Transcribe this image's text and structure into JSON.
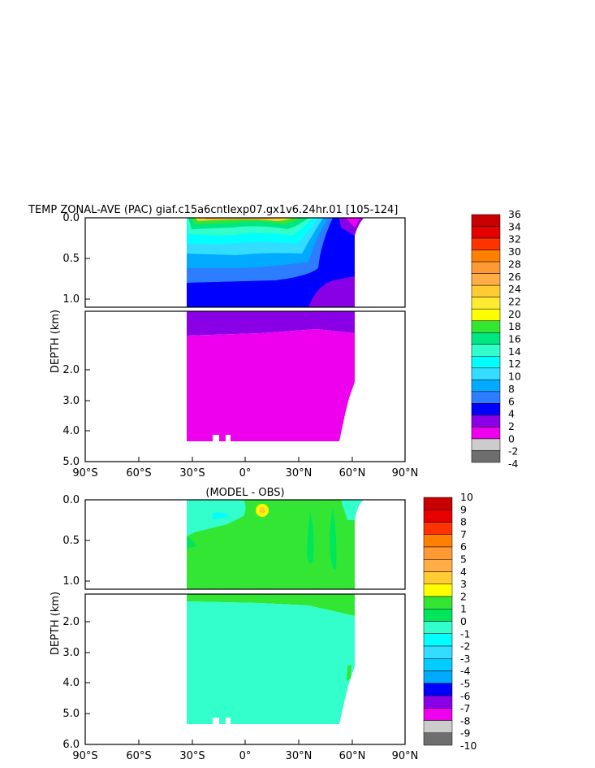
{
  "title": "TEMP ZONAL-AVE (PAC) giaf.c15a6cntlexp07.gx1v6.24hr.01 [105-124]",
  "subtitle": "(MODEL - OBS)",
  "ylabel": "DEPTH (km)",
  "x_ticks": [
    "90°S",
    "60°S",
    "30°S",
    "0°",
    "30°N",
    "60°N",
    "90°N"
  ],
  "y_ticks_upper": [
    "0.0",
    "0.5",
    "1.0"
  ],
  "y_ticks_lower": [
    "2.0",
    "3.0",
    "4.0",
    "5.0",
    "6.0"
  ],
  "chart_data": [
    {
      "type": "heatmap",
      "title": "TEMP ZONAL-AVE (PAC) giaf.c15a6cntlexp07.gx1v6.24hr.01 [105-124]",
      "ylabel": "DEPTH (km)",
      "xlim": [
        -90,
        90
      ],
      "ylim": [
        0,
        6
      ],
      "colorbar_ticks": [
        "36",
        "34",
        "32",
        "30",
        "28",
        "26",
        "24",
        "22",
        "20",
        "18",
        "16",
        "14",
        "12",
        "10",
        "8",
        "6",
        "4",
        "2",
        "0",
        "-2",
        "-4"
      ],
      "colorbar_colors": [
        "#c80000",
        "#e60000",
        "#ff3300",
        "#ff7f00",
        "#ff9933",
        "#ffad44",
        "#ffcc33",
        "#ffea33",
        "#ffff00",
        "#33e633",
        "#00e680",
        "#33ffcc",
        "#00ffff",
        "#33ddff",
        "#00aaff",
        "#2d7dff",
        "#0000ff",
        "#8a00e6",
        "#ee00ee",
        "#cccccc",
        "#6e6e6e"
      ],
      "x_extent": [
        -34,
        62
      ],
      "max_depth_km": 5.3
    },
    {
      "type": "heatmap",
      "title": "(MODEL - OBS)",
      "ylabel": "DEPTH (km)",
      "xlim": [
        -90,
        90
      ],
      "ylim": [
        0,
        6
      ],
      "colorbar_ticks": [
        "10",
        "9",
        "8",
        "7",
        "6",
        "5",
        "4",
        "3",
        "2",
        "1",
        "0",
        "-1",
        "-2",
        "-3",
        "-4",
        "-5",
        "-6",
        "-7",
        "-8",
        "-9",
        "-10"
      ],
      "colorbar_colors": [
        "#c80000",
        "#e60000",
        "#ff3300",
        "#ff7f00",
        "#ff9933",
        "#ffad44",
        "#ffcc33",
        "#ffff00",
        "#33e633",
        "#00e65c",
        "#33ffcc",
        "#00ffff",
        "#33ddff",
        "#00ccff",
        "#00aaff",
        "#0000ff",
        "#8a00e6",
        "#ee00ee",
        "#cccccc",
        "#6e6e6e"
      ],
      "x_extent": [
        -34,
        62
      ],
      "max_depth_km": 5.3
    }
  ]
}
